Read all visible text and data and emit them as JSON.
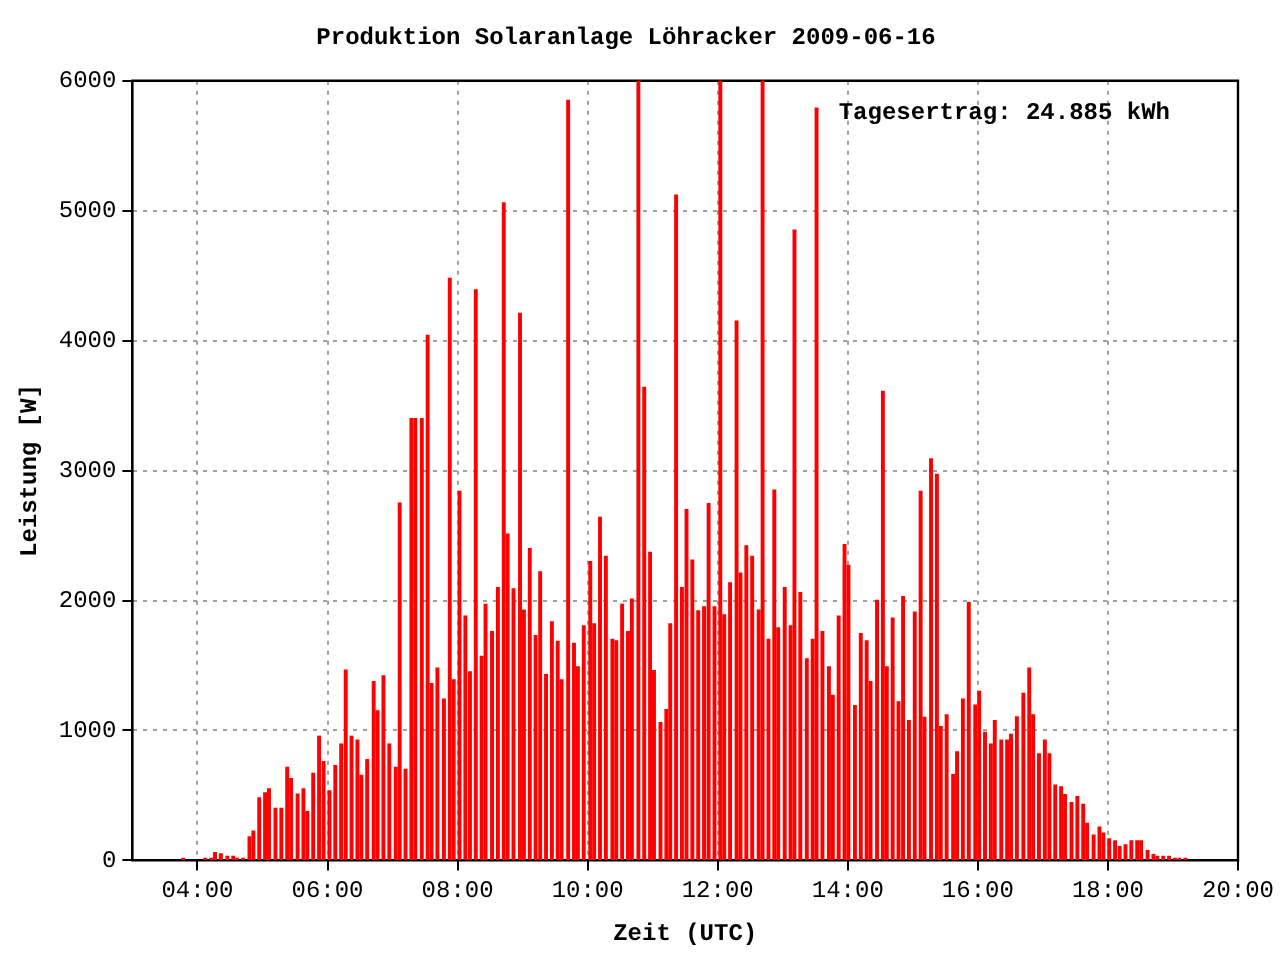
{
  "chart_data": {
    "type": "bar",
    "title": "Produktion Solaranlage Löhracker 2009-06-16",
    "xlabel": "Zeit (UTC)",
    "ylabel": "Leistung [W]",
    "annotations": [
      "Tagesertrag: 24.885 kWh"
    ],
    "x": [
      3.78,
      4.12,
      4.21,
      4.27,
      4.36,
      4.46,
      4.55,
      4.61,
      4.7,
      4.8,
      4.86,
      4.95,
      5.04,
      5.1,
      5.2,
      5.29,
      5.38,
      5.44,
      5.54,
      5.63,
      5.69,
      5.78,
      5.87,
      5.94,
      6.03,
      6.12,
      6.21,
      6.28,
      6.37,
      6.46,
      6.52,
      6.61,
      6.71,
      6.77,
      6.86,
      6.95,
      7.05,
      7.11,
      7.2,
      7.29,
      7.35,
      7.45,
      7.54,
      7.6,
      7.69,
      7.79,
      7.88,
      7.94,
      8.03,
      8.12,
      8.19,
      8.28,
      8.37,
      8.43,
      8.53,
      8.62,
      8.71,
      8.77,
      8.86,
      8.96,
      9.02,
      9.11,
      9.2,
      9.27,
      9.36,
      9.45,
      9.54,
      9.6,
      9.7,
      9.79,
      9.85,
      9.94,
      10.04,
      10.1,
      10.19,
      10.28,
      10.38,
      10.44,
      10.53,
      10.62,
      10.68,
      10.78,
      10.87,
      10.96,
      11.02,
      11.12,
      11.21,
      11.27,
      11.36,
      11.45,
      11.52,
      11.61,
      11.7,
      11.79,
      11.86,
      11.95,
      12.04,
      12.1,
      12.19,
      12.29,
      12.35,
      12.44,
      12.53,
      12.63,
      12.69,
      12.78,
      12.87,
      12.93,
      13.03,
      13.12,
      13.18,
      13.27,
      13.37,
      13.46,
      13.52,
      13.61,
      13.71,
      13.77,
      13.86,
      13.95,
      14.01,
      14.11,
      14.2,
      14.29,
      14.35,
      14.45,
      14.54,
      14.6,
      14.69,
      14.78,
      14.85,
      14.94,
      15.03,
      15.12,
      15.18,
      15.28,
      15.37,
      15.43,
      15.52,
      15.62,
      15.68,
      15.77,
      15.86,
      15.96,
      16.02,
      16.11,
      16.2,
      16.26,
      16.36,
      16.45,
      16.51,
      16.6,
      16.7,
      16.79,
      16.85,
      16.94,
      17.03,
      17.1,
      17.19,
      17.28,
      17.34,
      17.44,
      17.53,
      17.62,
      17.68,
      17.78,
      17.87,
      17.93,
      18.02,
      18.11,
      18.18,
      18.27,
      18.36,
      18.45,
      18.51,
      18.61,
      18.7,
      18.76,
      18.85,
      18.94,
      19.03,
      19.1,
      19.19
    ],
    "series": [
      {
        "color": "#ff0000",
        "values": [
          15,
          15,
          15,
          60,
          50,
          30,
          30,
          15,
          15,
          180,
          225,
          480,
          520,
          550,
          400,
          400,
          715,
          630,
          510,
          550,
          375,
          670,
          955,
          760,
          535,
          730,
          895,
          1465,
          955,
          925,
          655,
          775,
          1375,
          1150,
          1420,
          895,
          715,
          2750,
          700,
          3400,
          3400,
          3400,
          4040,
          1360,
          1480,
          1240,
          4480,
          1390,
          2840,
          1880,
          1450,
          4390,
          1570,
          1970,
          1760,
          2100,
          5060,
          2510,
          2090,
          4210,
          1925,
          2400,
          1730,
          2220,
          1430,
          1835,
          1685,
          1390,
          5850,
          1670,
          1490,
          1805,
          2300,
          1820,
          2640,
          2340,
          1700,
          1690,
          1970,
          1760,
          2010,
          6000,
          3640,
          2370,
          1460,
          1060,
          1160,
          1820,
          5120,
          2100,
          2700,
          2310,
          1920,
          1950,
          2745,
          1950,
          6000,
          1890,
          2135,
          4150,
          2210,
          2420,
          2340,
          1925,
          6000,
          1700,
          2850,
          1790,
          2100,
          1805,
          4850,
          2060,
          1550,
          1700,
          5790,
          1760,
          1490,
          1270,
          1880,
          2430,
          2270,
          1190,
          1745,
          1690,
          1375,
          2000,
          3610,
          1490,
          1865,
          1220,
          2030,
          1075,
          1910,
          2840,
          1100,
          3090,
          2970,
          1030,
          1120,
          660,
          835,
          1240,
          1985,
          1195,
          1300,
          985,
          895,
          1075,
          925,
          925,
          970,
          1105,
          1285,
          1480,
          1120,
          820,
          925,
          820,
          580,
          565,
          505,
          445,
          490,
          430,
          285,
          195,
          255,
          210,
          165,
          150,
          105,
          120,
          150,
          150,
          150,
          75,
          45,
          30,
          30,
          30,
          15,
          15,
          15
        ]
      }
    ],
    "xlim": [
      3,
      20
    ],
    "xticks": [
      {
        "value": 4,
        "label": "04:00"
      },
      {
        "value": 6,
        "label": "06:00"
      },
      {
        "value": 8,
        "label": "08:00"
      },
      {
        "value": 10,
        "label": "10:00"
      },
      {
        "value": 12,
        "label": "12:00"
      },
      {
        "value": 14,
        "label": "14:00"
      },
      {
        "value": 16,
        "label": "16:00"
      },
      {
        "value": 18,
        "label": "18:00"
      },
      {
        "value": 20,
        "label": "20:00"
      }
    ],
    "ylim": [
      0,
      6000
    ],
    "yticks": [
      0,
      1000,
      2000,
      3000,
      4000,
      5000,
      6000
    ],
    "grid": true
  }
}
